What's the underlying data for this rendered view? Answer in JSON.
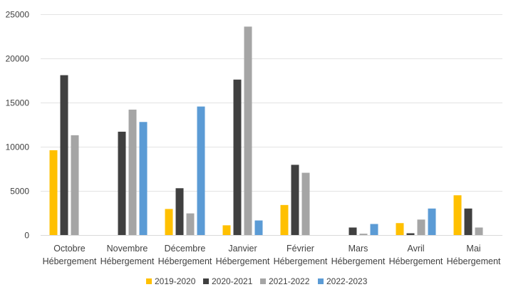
{
  "chart_data": {
    "type": "bar",
    "title": "",
    "xlabel": "",
    "ylabel": "",
    "ylim": [
      0,
      25000
    ],
    "yticks": [
      0,
      5000,
      10000,
      15000,
      20000,
      25000
    ],
    "grid": true,
    "legend_position": "bottom",
    "categories": [
      [
        "Octobre",
        "Hébergement"
      ],
      [
        "Novembre",
        "Hébergement"
      ],
      [
        "Décembre",
        "Hébergement"
      ],
      [
        "Janvier",
        "Hébergement"
      ],
      [
        "Février",
        "Hébergement"
      ],
      [
        "Mars",
        "Hébergement"
      ],
      [
        "Avril",
        "Hébergement"
      ],
      [
        "Mai",
        "Hébergement"
      ]
    ],
    "series": [
      {
        "name": "2019-2020",
        "color": "#FFC000",
        "values": [
          9600,
          null,
          2950,
          1100,
          3400,
          null,
          1350,
          4500
        ]
      },
      {
        "name": "2020-2021",
        "color": "#404040",
        "values": [
          18100,
          11700,
          5300,
          17600,
          7950,
          850,
          200,
          3000
        ]
      },
      {
        "name": "2021-2022",
        "color": "#A5A5A5",
        "values": [
          11300,
          14200,
          2450,
          23600,
          7050,
          150,
          1750,
          850
        ]
      },
      {
        "name": "2022-2023",
        "color": "#5B9BD5",
        "values": [
          null,
          12800,
          14550,
          1650,
          null,
          1250,
          3000,
          null
        ]
      }
    ]
  }
}
